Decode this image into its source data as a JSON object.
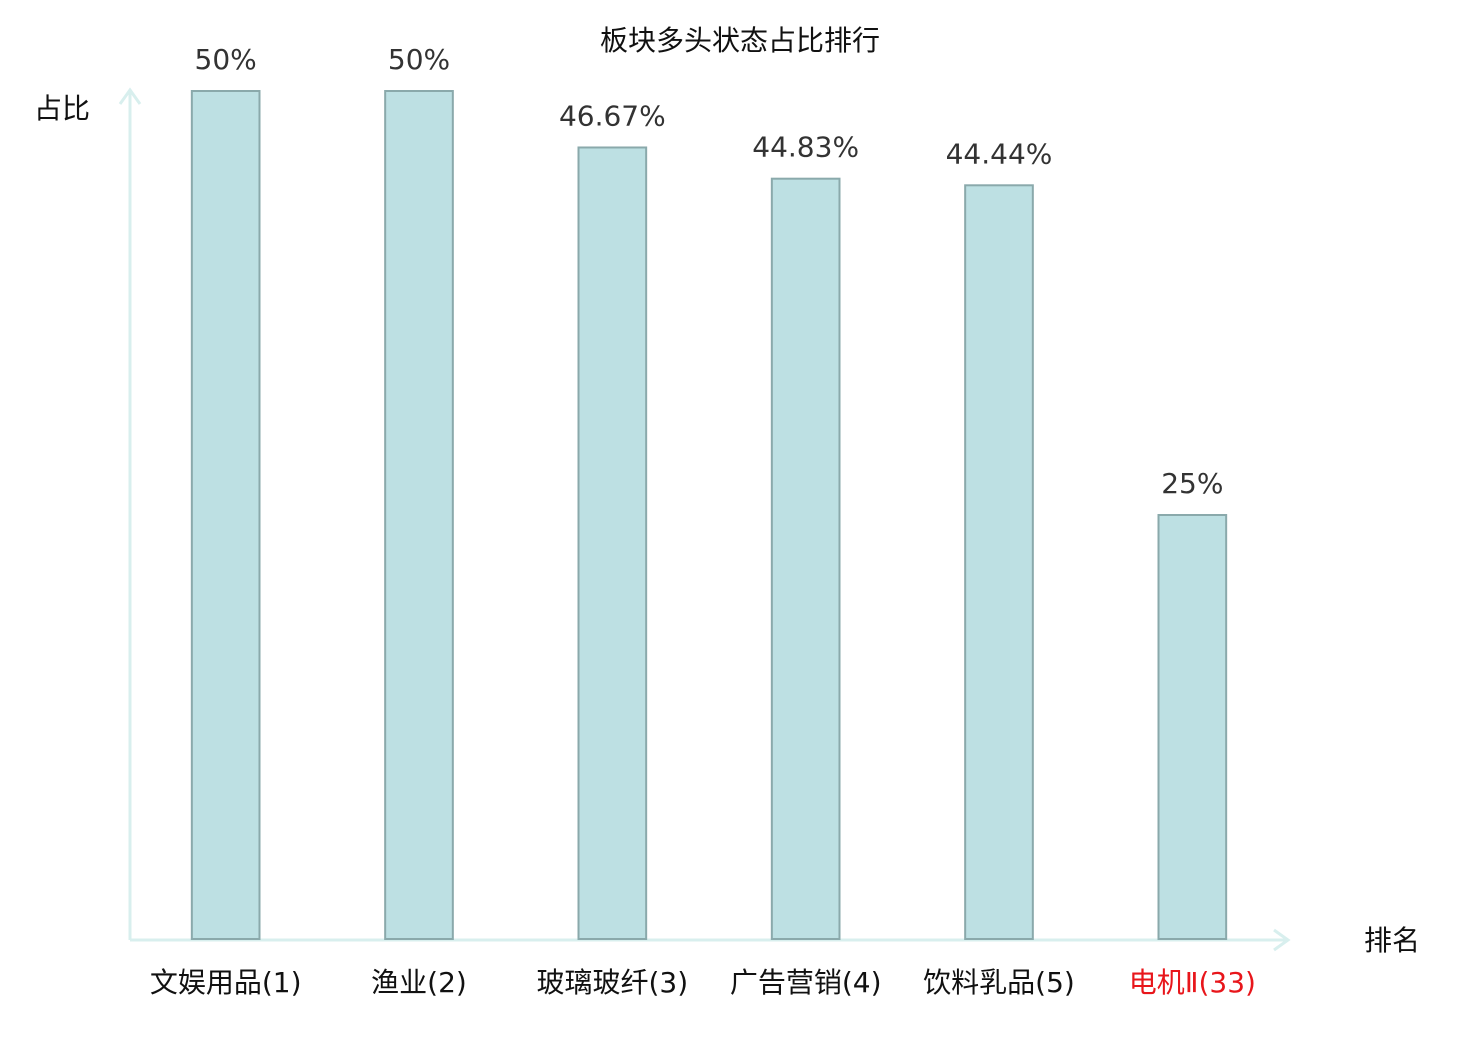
{
  "chart_data": {
    "type": "bar",
    "title": "板块多头状态占比排行",
    "y_label": "占比",
    "x_label": "排名",
    "categories": [
      "文娱用品(1)",
      "渔业(2)",
      "玻璃玻纤(3)",
      "广告营销(4)",
      "饮料乳品(5)",
      "电机Ⅱ(33)"
    ],
    "category_colors": [
      "#111111",
      "#111111",
      "#111111",
      "#111111",
      "#111111",
      "#e8161b"
    ],
    "values": [
      50,
      50,
      46.67,
      44.83,
      44.44,
      25
    ],
    "value_labels": [
      "50%",
      "50%",
      "46.67%",
      "44.83%",
      "44.44%",
      "25%"
    ],
    "color": "#bde0e3",
    "edge_color": "#8aa9ab",
    "ylim": [
      0,
      50
    ]
  }
}
